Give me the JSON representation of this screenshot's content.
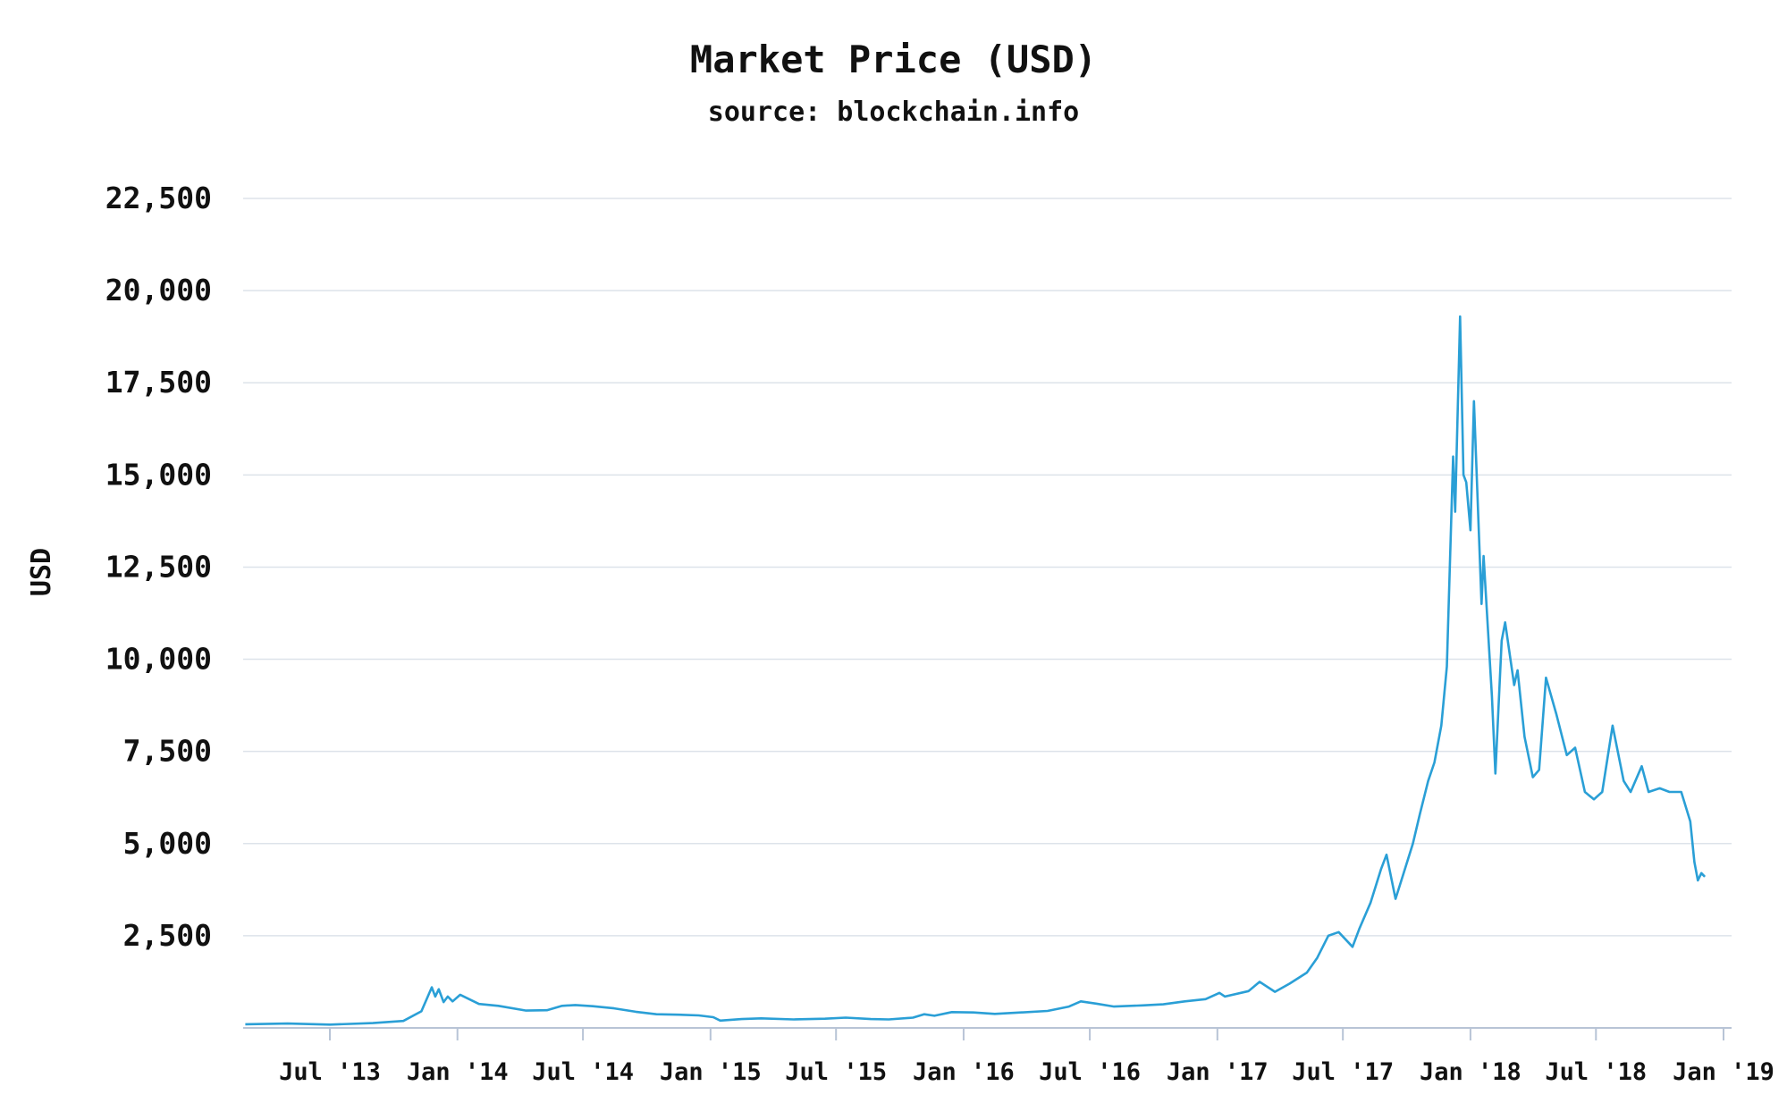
{
  "chart_data": {
    "type": "line",
    "title": "Market Price (USD)",
    "subtitle": "source: blockchain.info",
    "ylabel": "USD",
    "xlabel": "",
    "ylim": [
      0,
      22500
    ],
    "y_ticks": [
      2500,
      5000,
      7500,
      10000,
      12500,
      15000,
      17500,
      20000,
      22500
    ],
    "y_tick_labels": [
      "2,500",
      "5,000",
      "7,500",
      "10,000",
      "12,500",
      "15,000",
      "17,500",
      "20,000",
      "22,500"
    ],
    "xlim": [
      "2013-03-01",
      "2018-12-15"
    ],
    "x_ticks": [
      "2013-07-01",
      "2014-01-01",
      "2014-07-01",
      "2015-01-01",
      "2015-07-01",
      "2016-01-01",
      "2016-07-01",
      "2017-01-01",
      "2017-07-01",
      "2018-01-01",
      "2018-07-01",
      "2019-01-01"
    ],
    "x_tick_labels": [
      "Jul '13",
      "Jan '14",
      "Jul '14",
      "Jan '15",
      "Jul '15",
      "Jan '16",
      "Jul '16",
      "Jan '17",
      "Jul '17",
      "Jan '18",
      "Jul '18",
      "Jan '19"
    ],
    "grid": true,
    "colors": {
      "line": "#2a9fd6",
      "grid": "#dde3ea",
      "axis": "#b8c4d6"
    },
    "series": [
      {
        "name": "",
        "x": [
          "2013-03-01",
          "2013-05-01",
          "2013-07-01",
          "2013-09-01",
          "2013-10-15",
          "2013-11-10",
          "2013-11-25",
          "2013-11-30",
          "2013-12-05",
          "2013-12-12",
          "2013-12-18",
          "2013-12-25",
          "2014-01-05",
          "2014-02-01",
          "2014-03-01",
          "2014-04-10",
          "2014-05-10",
          "2014-06-01",
          "2014-06-20",
          "2014-07-15",
          "2014-08-15",
          "2014-09-15",
          "2014-10-15",
          "2014-11-15",
          "2014-12-15",
          "2015-01-05",
          "2015-01-15",
          "2015-02-15",
          "2015-03-15",
          "2015-05-01",
          "2015-06-15",
          "2015-07-15",
          "2015-08-20",
          "2015-09-15",
          "2015-10-20",
          "2015-11-05",
          "2015-11-20",
          "2015-12-15",
          "2016-01-15",
          "2016-02-15",
          "2016-03-15",
          "2016-05-01",
          "2016-06-01",
          "2016-06-18",
          "2016-07-10",
          "2016-08-05",
          "2016-09-15",
          "2016-10-15",
          "2016-11-15",
          "2016-12-15",
          "2017-01-04",
          "2017-01-12",
          "2017-02-15",
          "2017-03-03",
          "2017-03-25",
          "2017-04-15",
          "2017-05-10",
          "2017-05-25",
          "2017-06-10",
          "2017-06-25",
          "2017-07-15",
          "2017-07-25",
          "2017-08-10",
          "2017-08-25",
          "2017-09-02",
          "2017-09-15",
          "2017-09-25",
          "2017-10-10",
          "2017-10-20",
          "2017-11-01",
          "2017-11-10",
          "2017-11-20",
          "2017-11-28",
          "2017-12-07",
          "2017-12-10",
          "2017-12-17",
          "2017-12-22",
          "2017-12-26",
          "2018-01-01",
          "2018-01-06",
          "2018-01-17",
          "2018-01-20",
          "2018-02-01",
          "2018-02-06",
          "2018-02-15",
          "2018-02-20",
          "2018-03-05",
          "2018-03-10",
          "2018-03-20",
          "2018-04-01",
          "2018-04-10",
          "2018-04-20",
          "2018-05-05",
          "2018-05-20",
          "2018-06-01",
          "2018-06-15",
          "2018-06-28",
          "2018-07-10",
          "2018-07-25",
          "2018-08-10",
          "2018-08-20",
          "2018-09-05",
          "2018-09-15",
          "2018-10-01",
          "2018-10-15",
          "2018-11-01",
          "2018-11-14",
          "2018-11-20",
          "2018-11-25",
          "2018-11-30",
          "2018-12-05"
        ],
        "y": [
          100,
          120,
          90,
          130,
          190,
          450,
          1100,
          850,
          1050,
          700,
          850,
          720,
          900,
          650,
          600,
          470,
          480,
          600,
          620,
          590,
          530,
          440,
          370,
          360,
          340,
          290,
          200,
          240,
          260,
          230,
          250,
          280,
          240,
          230,
          280,
          370,
          330,
          430,
          420,
          380,
          410,
          460,
          580,
          720,
          660,
          580,
          610,
          640,
          720,
          780,
          950,
          850,
          1000,
          1250,
          980,
          1200,
          1500,
          1900,
          2500,
          2600,
          2200,
          2700,
          3400,
          4300,
          4700,
          3500,
          4100,
          5000,
          5800,
          6700,
          7200,
          8200,
          9800,
          15500,
          14000,
          19300,
          15000,
          14800,
          13500,
          17000,
          11500,
          12800,
          9000,
          6900,
          10500,
          11000,
          9300,
          9700,
          7900,
          6800,
          7000,
          9500,
          8500,
          7400,
          7600,
          6400,
          6200,
          6400,
          8200,
          6700,
          6400,
          7100,
          6400,
          6500,
          6400,
          6400,
          5600,
          4500,
          4000,
          4200,
          4100
        ]
      }
    ]
  }
}
